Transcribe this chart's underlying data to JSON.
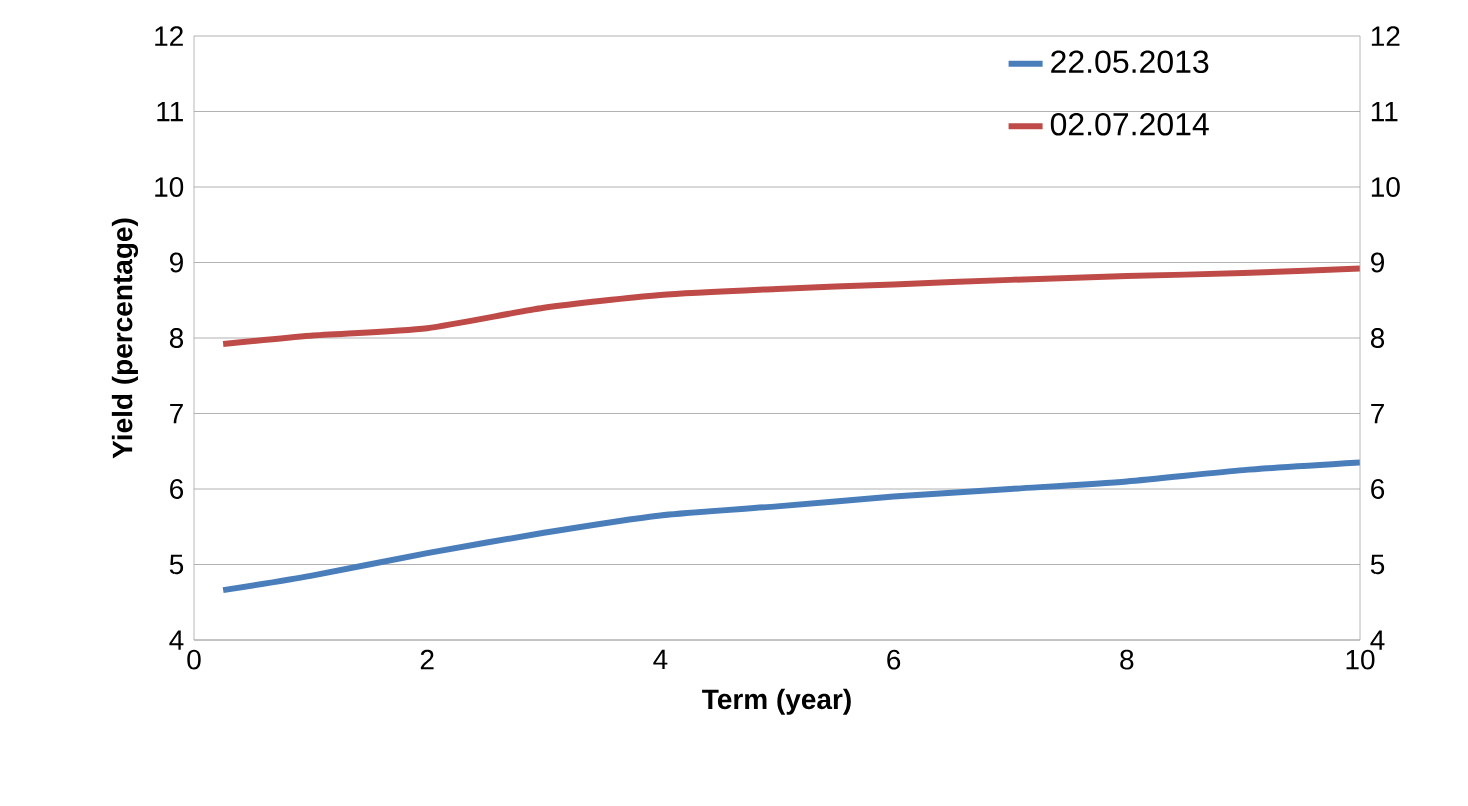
{
  "chart_data": {
    "type": "line",
    "xlabel": "Term (year)",
    "ylabel": "Yield (percentage)",
    "xlim": [
      0,
      10
    ],
    "xticks": [
      0,
      2,
      4,
      6,
      8,
      10
    ],
    "ylim": [
      4,
      12
    ],
    "yticks": [
      4,
      5,
      6,
      7,
      8,
      9,
      10,
      11,
      12
    ],
    "y2lim": [
      4,
      12
    ],
    "y2ticks": [
      4,
      5,
      6,
      7,
      8,
      9,
      10,
      11,
      12
    ],
    "grid": "y",
    "legend": "top right",
    "marker": "none",
    "line_style": "solid",
    "x": [
      0.25,
      1,
      2,
      3,
      4,
      5,
      6,
      7,
      8,
      9,
      10
    ],
    "series": [
      {
        "name": "22.05.2013",
        "color": "#4a7ebb",
        "values": [
          4.66,
          4.85,
          5.15,
          5.42,
          5.65,
          5.77,
          5.9,
          6.0,
          6.1,
          6.25,
          6.35
        ]
      },
      {
        "name": "02.07.2014",
        "color": "#be4b48",
        "values": [
          7.92,
          8.03,
          8.13,
          8.4,
          8.57,
          8.65,
          8.71,
          8.77,
          8.82,
          8.86,
          8.92
        ]
      }
    ]
  }
}
